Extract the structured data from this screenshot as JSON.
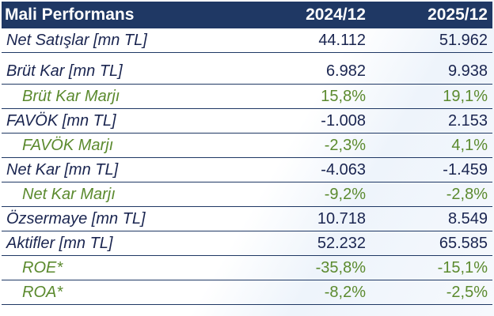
{
  "header": {
    "title": "Mali Performans",
    "col1": "2024/12",
    "col2": "2025/12"
  },
  "colors": {
    "header_bg": "#1f3864",
    "text": "#1a2550",
    "margin_text": "#5b8a2e"
  },
  "rows": [
    {
      "label": "Net Satışlar [mn TL]",
      "v1": "44.112",
      "v2": "51.962",
      "type": "main"
    },
    {
      "label": "Brüt Kar [mn TL]",
      "v1": "6.982",
      "v2": "9.938",
      "type": "main"
    },
    {
      "label": "Brüt Kar Marjı",
      "v1": "15,8%",
      "v2": "19,1%",
      "type": "sub"
    },
    {
      "label": "FAVÖK [mn TL]",
      "v1": "-1.008",
      "v2": "2.153",
      "type": "main"
    },
    {
      "label": "FAVÖK Marjı",
      "v1": "-2,3%",
      "v2": "4,1%",
      "type": "sub"
    },
    {
      "label": "Net Kar [mn TL]",
      "v1": "-4.063",
      "v2": "-1.459",
      "type": "main"
    },
    {
      "label": "Net Kar Marjı",
      "v1": "-9,2%",
      "v2": "-2,8%",
      "type": "sub"
    },
    {
      "label": "Özsermaye [mn TL]",
      "v1": "10.718",
      "v2": "8.549",
      "type": "main"
    },
    {
      "label": "Aktifler [mn TL]",
      "v1": "52.232",
      "v2": "65.585",
      "type": "main"
    },
    {
      "label": "ROE*",
      "v1": "-35,8%",
      "v2": "-15,1%",
      "type": "sub"
    },
    {
      "label": "ROA*",
      "v1": "-8,2%",
      "v2": "-2,5%",
      "type": "sub"
    }
  ]
}
